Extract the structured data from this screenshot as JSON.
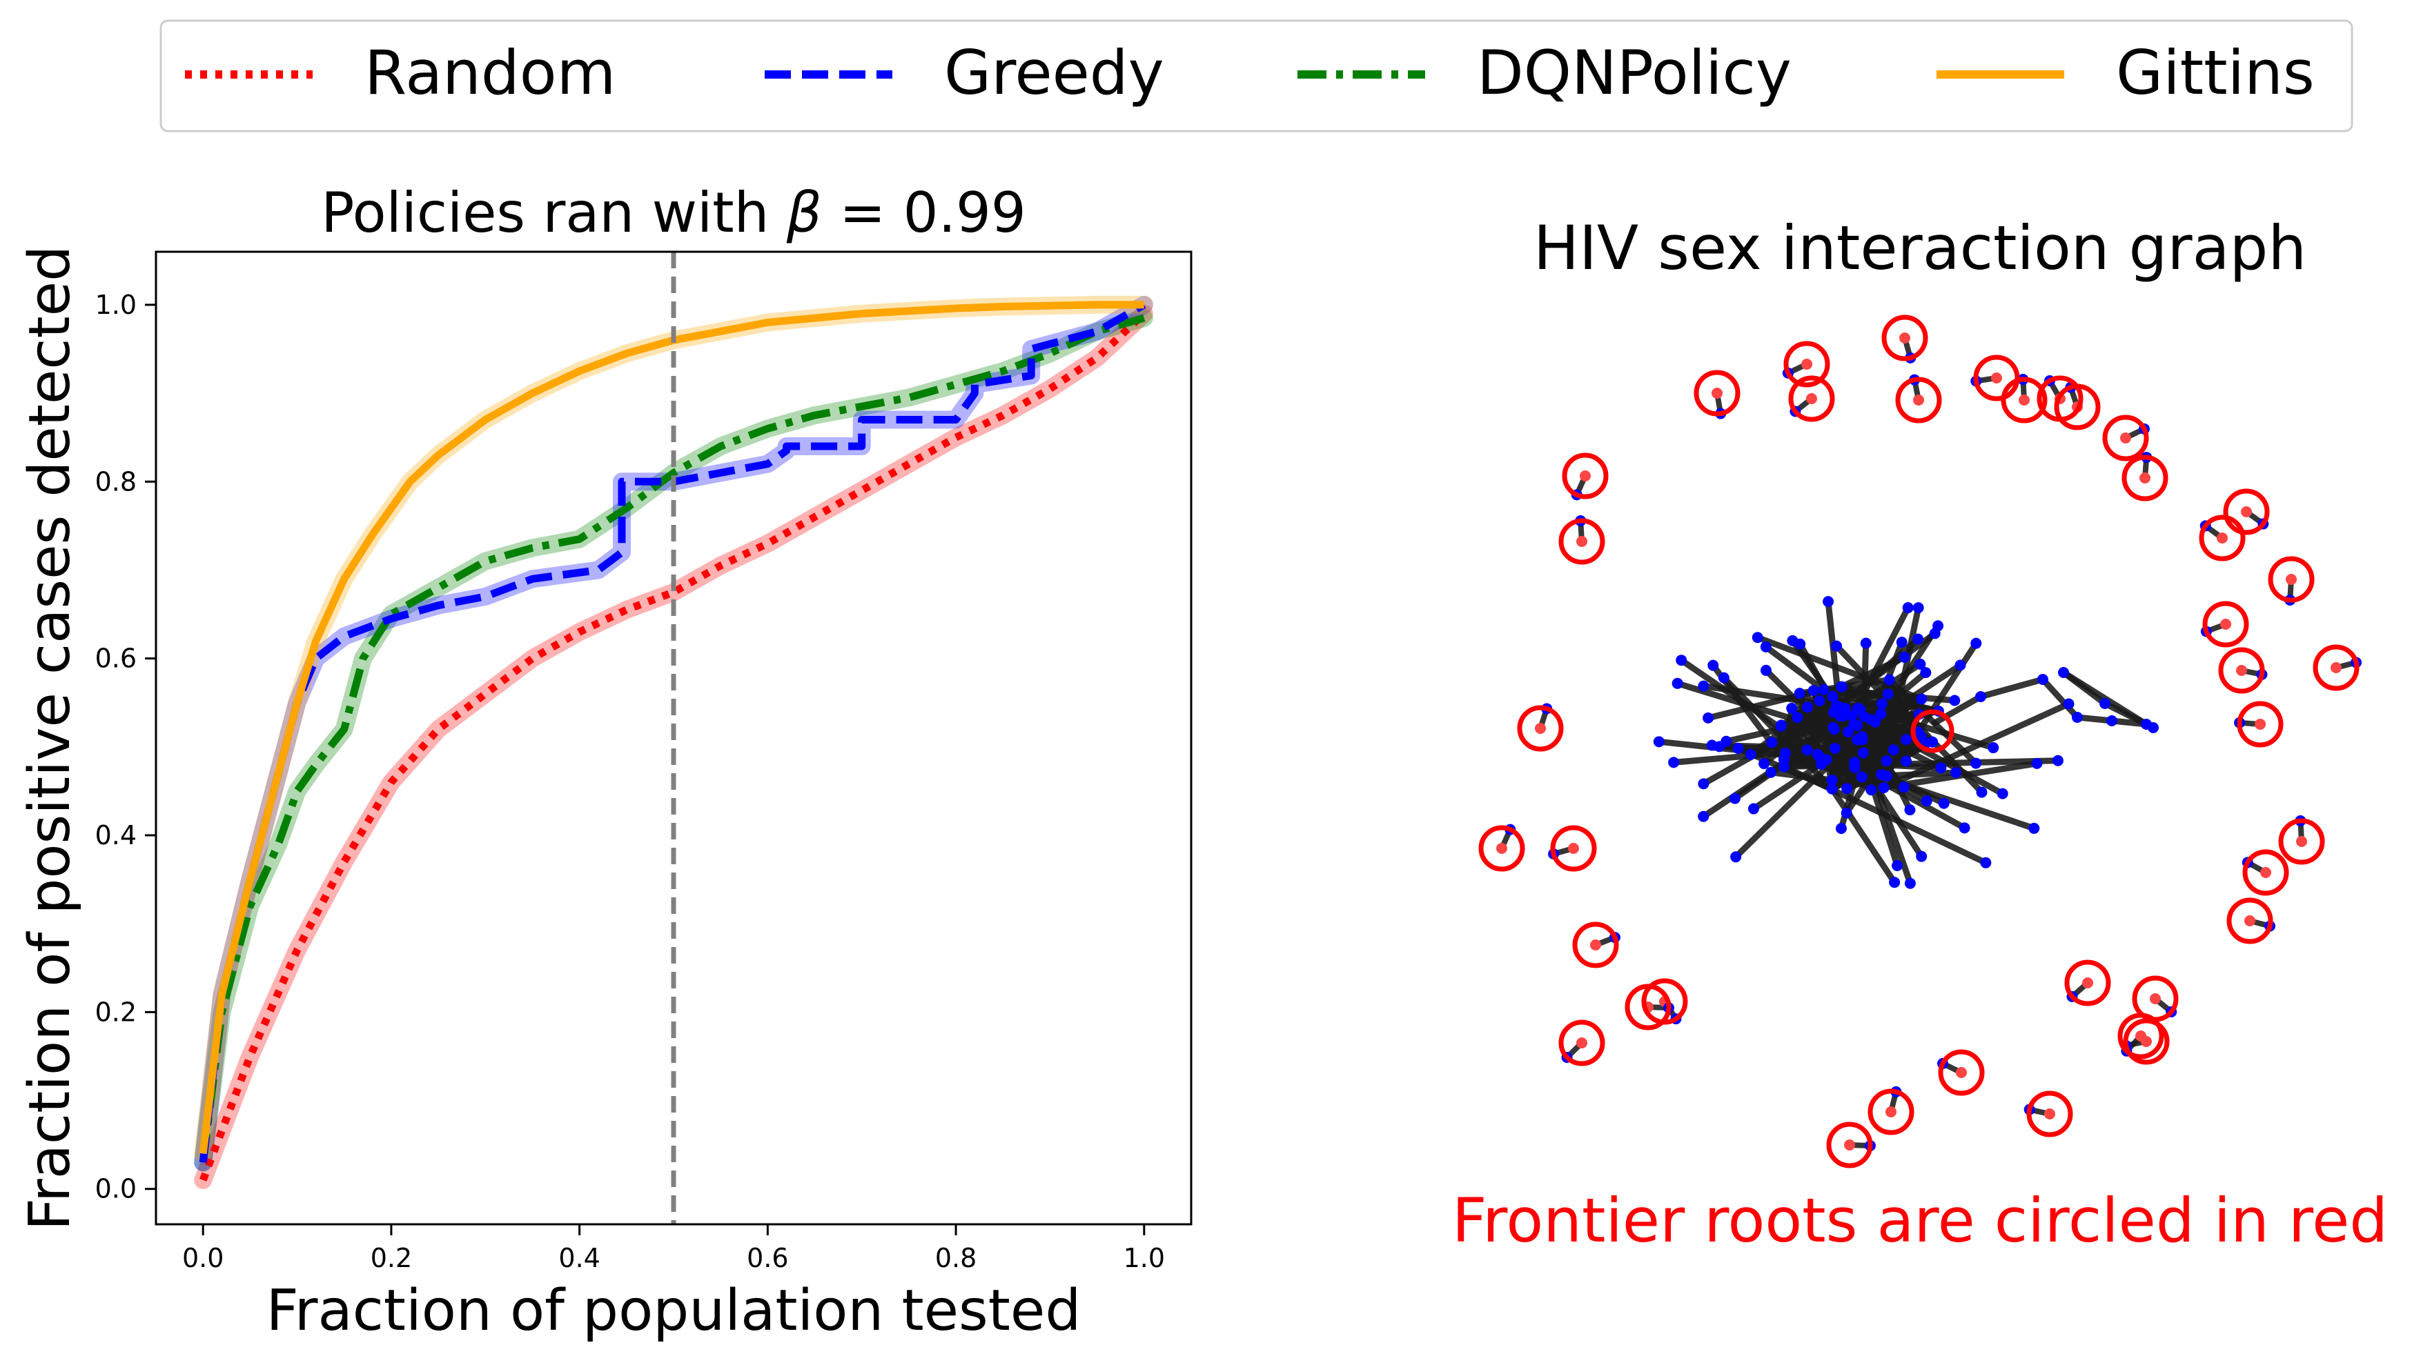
{
  "legend": {
    "entries": [
      {
        "label": "Random",
        "color": "#ff0000",
        "style": "dotted"
      },
      {
        "label": "Greedy",
        "color": "#0000ff",
        "style": "dashed"
      },
      {
        "label": "DQNPolicy",
        "color": "#008000",
        "style": "dashdot"
      },
      {
        "label": "Gittins",
        "color": "#ffa500",
        "style": "solid"
      }
    ]
  },
  "chart_data": [
    {
      "type": "line",
      "title": "Policies ran with β = 0.99",
      "title_prefix": "Policies ran with ",
      "title_beta": "β",
      "title_eq": "=",
      "title_value": "0.99",
      "xlabel": "Fraction of population tested",
      "ylabel": "Fraction of positive cases detected",
      "xlim": [
        -0.05,
        1.05
      ],
      "ylim": [
        -0.04,
        1.06
      ],
      "xticks": [
        0.0,
        0.2,
        0.4,
        0.6,
        0.8,
        1.0
      ],
      "xtick_labels": [
        "0.0",
        "0.2",
        "0.4",
        "0.6",
        "0.8",
        "1.0"
      ],
      "yticks": [
        0.0,
        0.2,
        0.4,
        0.6,
        0.8,
        1.0
      ],
      "ytick_labels": [
        "0.0",
        "0.2",
        "0.4",
        "0.6",
        "0.8",
        "1.0"
      ],
      "vline": {
        "x": 0.5,
        "color": "#808080",
        "style": "dashed"
      },
      "series": [
        {
          "name": "Random",
          "color": "#ff0000",
          "style": "dotted",
          "x": [
            0.0,
            0.05,
            0.1,
            0.15,
            0.2,
            0.25,
            0.3,
            0.35,
            0.4,
            0.45,
            0.5,
            0.55,
            0.6,
            0.65,
            0.7,
            0.75,
            0.8,
            0.85,
            0.9,
            0.95,
            1.0
          ],
          "y": [
            0.01,
            0.15,
            0.27,
            0.37,
            0.46,
            0.52,
            0.56,
            0.6,
            0.63,
            0.655,
            0.675,
            0.705,
            0.73,
            0.76,
            0.79,
            0.82,
            0.85,
            0.875,
            0.905,
            0.94,
            0.99
          ]
        },
        {
          "name": "Greedy",
          "color": "#0000ff",
          "style": "dashed",
          "x": [
            0.0,
            0.02,
            0.05,
            0.08,
            0.1,
            0.12,
            0.15,
            0.2,
            0.25,
            0.3,
            0.35,
            0.42,
            0.445,
            0.445,
            0.5,
            0.55,
            0.6,
            0.62,
            0.62,
            0.7,
            0.7,
            0.8,
            0.82,
            0.82,
            0.88,
            0.88,
            0.95,
            1.0
          ],
          "y": [
            0.03,
            0.22,
            0.35,
            0.47,
            0.55,
            0.6,
            0.625,
            0.645,
            0.66,
            0.67,
            0.69,
            0.7,
            0.72,
            0.8,
            0.8,
            0.81,
            0.82,
            0.835,
            0.84,
            0.84,
            0.87,
            0.87,
            0.9,
            0.91,
            0.92,
            0.95,
            0.97,
            1.0
          ]
        },
        {
          "name": "DQNPolicy",
          "color": "#008000",
          "style": "dashdot",
          "x": [
            0.0,
            0.02,
            0.05,
            0.08,
            0.1,
            0.12,
            0.15,
            0.17,
            0.2,
            0.25,
            0.3,
            0.35,
            0.4,
            0.45,
            0.5,
            0.55,
            0.6,
            0.65,
            0.7,
            0.75,
            0.8,
            0.85,
            0.9,
            0.95,
            1.0
          ],
          "y": [
            0.03,
            0.2,
            0.32,
            0.39,
            0.45,
            0.48,
            0.52,
            0.6,
            0.65,
            0.68,
            0.71,
            0.725,
            0.735,
            0.77,
            0.81,
            0.84,
            0.86,
            0.875,
            0.885,
            0.895,
            0.91,
            0.925,
            0.945,
            0.97,
            0.985
          ]
        },
        {
          "name": "Gittins",
          "color": "#ffa500",
          "style": "solid",
          "x": [
            0.0,
            0.02,
            0.05,
            0.08,
            0.1,
            0.12,
            0.15,
            0.18,
            0.2,
            0.22,
            0.25,
            0.3,
            0.35,
            0.4,
            0.45,
            0.5,
            0.55,
            0.6,
            0.65,
            0.7,
            0.75,
            0.8,
            0.85,
            0.9,
            0.95,
            1.0
          ],
          "y": [
            0.04,
            0.22,
            0.35,
            0.47,
            0.55,
            0.62,
            0.69,
            0.74,
            0.77,
            0.8,
            0.83,
            0.87,
            0.9,
            0.925,
            0.945,
            0.96,
            0.97,
            0.98,
            0.985,
            0.99,
            0.993,
            0.996,
            0.998,
            0.999,
            1.0,
            1.0
          ]
        }
      ]
    },
    {
      "type": "network_graph",
      "title": "HIV sex interaction graph",
      "annotation": "Frontier roots are circled in red",
      "annotation_color": "#ff0000",
      "node_color": "#0000ff",
      "edge_color": "#1a1a1a",
      "root_marker_color": "#ff0000"
    }
  ]
}
